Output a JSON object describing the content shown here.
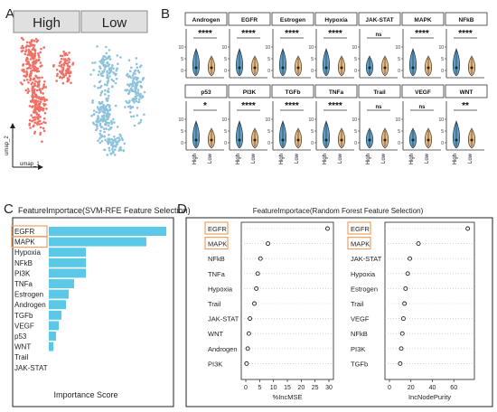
{
  "panels": {
    "a": "A",
    "b": "B",
    "c": "C",
    "d": "D"
  },
  "panel_a": {
    "facets": [
      "High",
      "Low"
    ],
    "xlabel": "umap_1",
    "ylabel": "umap_2",
    "colors": {
      "High": "#f07167",
      "Low": "#8ec3dc"
    }
  },
  "panel_b": {
    "groups": [
      "High",
      "Low"
    ],
    "colors": {
      "High": "#5b9ec9",
      "Low": "#e8b97a"
    },
    "facets": [
      {
        "name": "Androgen",
        "sig": "****",
        "bracket": false
      },
      {
        "name": "EGFR",
        "sig": "****",
        "bracket": false
      },
      {
        "name": "Estrogen",
        "sig": "****",
        "bracket": false
      },
      {
        "name": "Hypoxia",
        "sig": "****",
        "bracket": false
      },
      {
        "name": "JAK-STAT",
        "sig": "ns",
        "bracket": true
      },
      {
        "name": "MAPK",
        "sig": "****",
        "bracket": false
      },
      {
        "name": "NFkB",
        "sig": "****",
        "bracket": false
      },
      {
        "name": "p53",
        "sig": "*",
        "bracket": false
      },
      {
        "name": "PI3K",
        "sig": "****",
        "bracket": false
      },
      {
        "name": "TGFb",
        "sig": "****",
        "bracket": false
      },
      {
        "name": "TNFa",
        "sig": "****",
        "bracket": false
      },
      {
        "name": "Trail",
        "sig": "ns",
        "bracket": false
      },
      {
        "name": "VEGF",
        "sig": "ns",
        "bracket": false
      },
      {
        "name": "WNT",
        "sig": "**",
        "bracket": false
      }
    ],
    "yticks": [
      "0",
      "5",
      "10"
    ]
  },
  "chart_data": [
    {
      "type": "bar",
      "title": "FeatureImportace(SVM-RFE Feature Selection)",
      "xlabel": "Importance Score",
      "categories": [
        "EGFR",
        "MAPK",
        "Hypoxia",
        "NFkB",
        "PI3K",
        "TNFa",
        "Estrogen",
        "Androgen",
        "TGFb",
        "VEGF",
        "p53",
        "WNT",
        "Trail",
        "JAK-STAT"
      ],
      "values": [
        13,
        10.8,
        4.1,
        4.1,
        4.1,
        2.8,
        2.2,
        1.9,
        1.4,
        1.1,
        0.8,
        0.5,
        0,
        0
      ],
      "highlighted": [
        "EGFR",
        "MAPK"
      ],
      "bar_color": "#5bc8e8",
      "highlight_color": "#f0a060"
    },
    {
      "type": "scatter",
      "title": "FeatureImportace(Random Forest Feature Selection)",
      "xlabel": "%IncMSE",
      "categories": [
        "EGFR",
        "MAPK",
        "NFkB",
        "TNFa",
        "Hypoxia",
        "Trail",
        "JAK-STAT",
        "WNT",
        "Androgen",
        "PI3K"
      ],
      "values": [
        29.5,
        8,
        5.3,
        4.3,
        3.8,
        3.1,
        1.5,
        1.1,
        0.7,
        0.3
      ],
      "xlim": [
        0,
        30
      ],
      "xticks": [
        "0",
        "5",
        "10",
        "15",
        "20",
        "25",
        "30"
      ],
      "highlighted": [
        "EGFR",
        "MAPK"
      ]
    },
    {
      "type": "scatter",
      "xlabel": "IncNodePurity",
      "categories": [
        "EGFR",
        "MAPK",
        "JAK-STAT",
        "Hypoxia",
        "Estrogen",
        "Trail",
        "VEGF",
        "NFkB",
        "PI3K",
        "TGFb"
      ],
      "values": [
        73,
        27,
        19,
        17,
        15,
        14,
        13,
        12,
        11,
        10
      ],
      "xlim": [
        0,
        75
      ],
      "xticks": [
        "0",
        "20",
        "40",
        "60"
      ],
      "highlighted": [
        "EGFR",
        "MAPK"
      ]
    }
  ]
}
